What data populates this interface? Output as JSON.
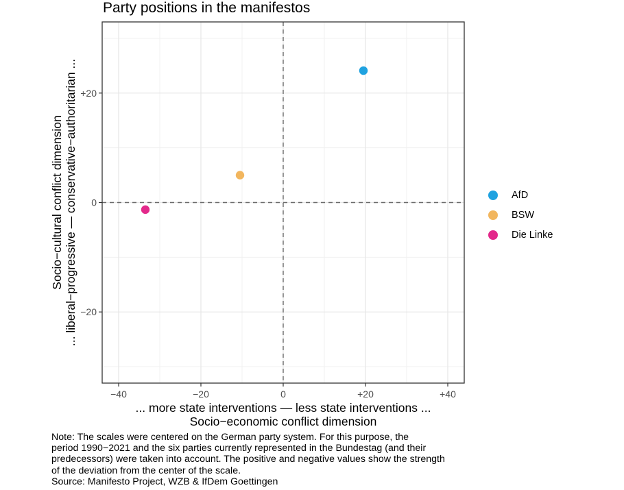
{
  "chart_data": {
    "type": "scatter",
    "title": "Party positions in the manifestos",
    "xlabel_line1": "... more state interventions — less state interventions ...",
    "xlabel_line2": "Socio−economic conflict dimension",
    "ylabel_line1": "Socio−cultural conflict dimension",
    "ylabel_line2": "... liberal−progressive — conservative−authoritarian ...",
    "xlim": [
      -44,
      44
    ],
    "ylim": [
      -33,
      33
    ],
    "x_ticks": [
      -40,
      -20,
      0,
      20,
      40
    ],
    "x_tick_labels": [
      "−40",
      "−20",
      "0",
      "+20",
      "+40"
    ],
    "y_ticks": [
      -20,
      0,
      20
    ],
    "y_tick_labels": [
      "−20",
      "0",
      "+20"
    ],
    "x_minor_grid": [
      -30,
      -10,
      10,
      30
    ],
    "y_minor_grid": [
      -30,
      -10,
      10,
      30
    ],
    "grid": true,
    "reference_lines": {
      "x": 0,
      "y": 0,
      "style": "dashed"
    },
    "legend_position": "right",
    "series": [
      {
        "name": "AfD",
        "x": 19.5,
        "y": 24.1,
        "color": "#1fa2e0"
      },
      {
        "name": "BSW",
        "x": -10.5,
        "y": 5.0,
        "color": "#f2b65e"
      },
      {
        "name": "Die Linke",
        "x": -33.5,
        "y": -1.3,
        "color": "#e3298b"
      }
    ]
  },
  "note": {
    "lines": [
      "Note: The scales were centered on the German party system. For this purpose, the",
      "period 1990−2021 and the six parties currently represented in the Bundestag (and their",
      "predecessors) were taken into account. The positive and negative values show the strength",
      "of the deviation from the center of the scale.",
      "Source: Manifesto Project, WZB & IfDem Goettingen"
    ]
  }
}
